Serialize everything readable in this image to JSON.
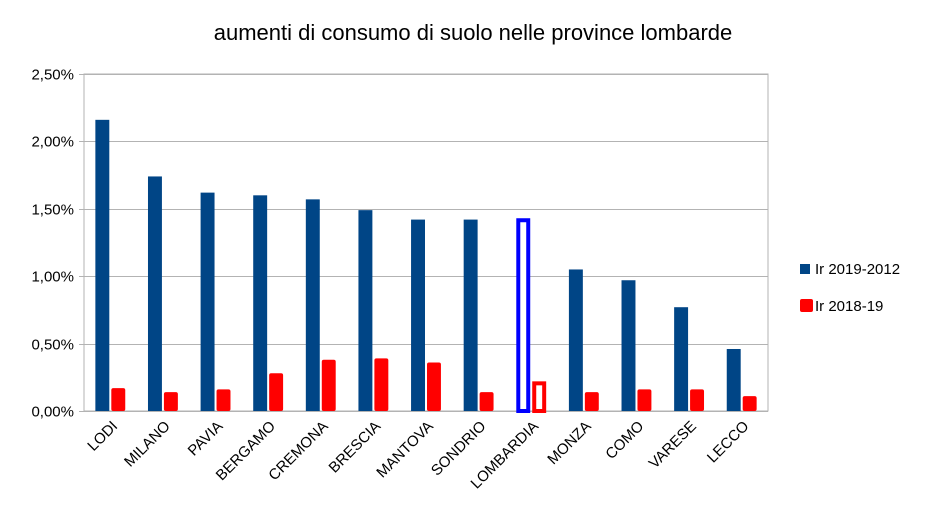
{
  "chart_data": {
    "type": "bar",
    "title": "aumenti di consumo di suolo nelle province lombarde",
    "xlabel": "",
    "ylabel": "",
    "ylim": [
      0,
      0.025
    ],
    "y_ticks": [
      "0,00%",
      "0,50%",
      "1,00%",
      "1,50%",
      "2,00%",
      "2,50%"
    ],
    "y_tick_values": [
      0,
      0.005,
      0.01,
      0.015,
      0.02,
      0.025
    ],
    "grid": true,
    "legend_position": "right",
    "categories": [
      "LODI",
      "MILANO",
      "PAVIA",
      "BERGAMO",
      "CREMONA",
      "BRESCIA",
      "MANTOVA",
      "SONDRIO",
      "LOMBARDIA",
      "MONZA",
      "COMO",
      "VARESE",
      "LECCO"
    ],
    "highlighted_category": "LOMBARDIA",
    "series": [
      {
        "name": "Ir 2019-2012",
        "color": "#004586",
        "highlight_color": "#0000ff",
        "values": [
          0.0216,
          0.0174,
          0.0162,
          0.016,
          0.0157,
          0.0149,
          0.0142,
          0.0142,
          0.0143,
          0.0105,
          0.0097,
          0.0077,
          0.0046
        ]
      },
      {
        "name": "Ir 2018-19",
        "color": "#ff0000",
        "highlight_color": "#ff0000",
        "values": [
          0.0017,
          0.0014,
          0.0016,
          0.0028,
          0.0038,
          0.0039,
          0.0036,
          0.0014,
          0.0022,
          0.0014,
          0.0016,
          0.0016,
          0.0011
        ]
      }
    ]
  }
}
